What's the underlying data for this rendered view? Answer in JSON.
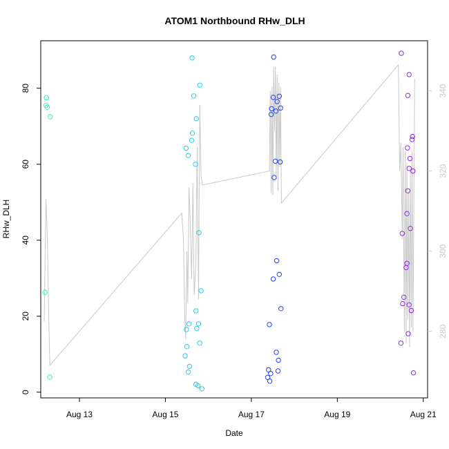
{
  "chart_data": {
    "type": "scatter",
    "title": "ATOM1 Northbound RHw_DLH",
    "xlabel": "Date",
    "ylabel": "RHw_DLH",
    "x_unit": "days",
    "xlim": [
      12.1,
      21.1
    ],
    "ylim": [
      -1.5,
      92.5
    ],
    "x_ticks": [
      13,
      15,
      17,
      19,
      21
    ],
    "x_tick_labels": [
      "Aug 13",
      "Aug 15",
      "Aug 17",
      "Aug 19",
      "Aug 21"
    ],
    "y_ticks": [
      0,
      20,
      40,
      60,
      80
    ],
    "y_tick_labels": [
      "0",
      "20",
      "40",
      "60",
      "80"
    ],
    "right_axis": {
      "color": "#c8c8c8",
      "ylim": [
        263.4,
        352.5
      ],
      "ticks": [
        280,
        300,
        320,
        340
      ],
      "tick_labels": [
        "280",
        "300",
        "320",
        "340"
      ]
    },
    "grid": false,
    "series": [
      {
        "color": "#33f0b2",
        "points": [
          [
            12.23,
            77.5
          ],
          [
            12.22,
            75.5
          ],
          [
            12.25,
            75.0
          ],
          [
            12.32,
            72.5
          ],
          [
            12.2,
            26.3
          ],
          [
            12.31,
            4.0
          ]
        ]
      },
      {
        "color": "#22ccf0",
        "points": [
          [
            15.62,
            88.0
          ],
          [
            15.8,
            80.8
          ],
          [
            15.66,
            78.0
          ],
          [
            15.72,
            72.0
          ],
          [
            15.63,
            68.2
          ],
          [
            15.61,
            66.3
          ],
          [
            15.48,
            64.2
          ],
          [
            15.53,
            62.3
          ],
          [
            15.7,
            60.0
          ],
          [
            15.78,
            42.0
          ],
          [
            15.83,
            26.7
          ],
          [
            15.71,
            21.4
          ],
          [
            15.55,
            18.0
          ],
          [
            15.77,
            18.0
          ],
          [
            15.49,
            16.5
          ],
          [
            15.73,
            16.8
          ],
          [
            15.8,
            12.9
          ],
          [
            15.5,
            12.0
          ],
          [
            15.46,
            9.6
          ],
          [
            15.56,
            6.8
          ],
          [
            15.53,
            5.3
          ],
          [
            15.71,
            2.1
          ],
          [
            15.76,
            1.7
          ],
          [
            15.85,
            0.9
          ]
        ]
      },
      {
        "color": "#2040f0",
        "points": [
          [
            17.52,
            88.2
          ],
          [
            17.51,
            77.6
          ],
          [
            17.65,
            77.9
          ],
          [
            17.6,
            76.5
          ],
          [
            17.47,
            74.6
          ],
          [
            17.57,
            74.0
          ],
          [
            17.68,
            74.8
          ],
          [
            17.46,
            73.1
          ],
          [
            17.56,
            60.8
          ],
          [
            17.67,
            60.6
          ],
          [
            17.53,
            56.5
          ],
          [
            17.59,
            34.6
          ],
          [
            17.65,
            31.0
          ],
          [
            17.51,
            29.8
          ],
          [
            17.69,
            22.0
          ],
          [
            17.42,
            17.8
          ],
          [
            17.58,
            10.5
          ],
          [
            17.63,
            8.4
          ],
          [
            17.4,
            5.9
          ],
          [
            17.62,
            5.6
          ],
          [
            17.45,
            4.9
          ],
          [
            17.38,
            3.9
          ],
          [
            17.43,
            2.9
          ]
        ]
      },
      {
        "color": "#8a2be2",
        "points": [
          [
            20.49,
            89.2
          ],
          [
            20.67,
            83.6
          ],
          [
            20.64,
            78.1
          ],
          [
            20.75,
            67.3
          ],
          [
            20.74,
            66.5
          ],
          [
            20.63,
            64.3
          ],
          [
            20.69,
            61.5
          ],
          [
            20.67,
            58.9
          ],
          [
            20.76,
            58.2
          ],
          [
            20.64,
            53.0
          ],
          [
            20.62,
            47.0
          ],
          [
            20.7,
            43.1
          ],
          [
            20.51,
            41.8
          ],
          [
            20.62,
            33.9
          ],
          [
            20.6,
            32.8
          ],
          [
            20.55,
            25.0
          ],
          [
            20.52,
            23.3
          ],
          [
            20.67,
            23.0
          ],
          [
            20.72,
            21.5
          ],
          [
            20.65,
            15.4
          ],
          [
            20.48,
            12.9
          ],
          [
            20.77,
            5.1
          ]
        ]
      }
    ],
    "overlay_line": {
      "color": "#c8c8c8",
      "axis": "right",
      "points": [
        [
          12.18,
          282.5
        ],
        [
          12.22,
          313.0
        ],
        [
          12.25,
          305.0
        ],
        [
          12.28,
          287.0
        ],
        [
          12.31,
          271.5
        ],
        [
          15.38,
          309.5
        ],
        [
          15.42,
          303.0
        ],
        [
          15.45,
          284.0
        ],
        [
          15.47,
          278.0
        ],
        [
          15.5,
          300.0
        ],
        [
          15.52,
          287.0
        ],
        [
          15.55,
          316.0
        ],
        [
          15.58,
          307.0
        ],
        [
          15.61,
          293.0
        ],
        [
          15.64,
          317.0
        ],
        [
          15.67,
          289.0
        ],
        [
          15.71,
          297.0
        ],
        [
          15.74,
          326.0
        ],
        [
          15.77,
          288.0
        ],
        [
          15.8,
          336.5
        ],
        [
          15.83,
          318.5
        ],
        [
          15.86,
          316.5
        ],
        [
          17.42,
          320.0
        ],
        [
          17.44,
          340.0
        ],
        [
          17.46,
          314.5
        ],
        [
          17.48,
          341.0
        ],
        [
          17.5,
          314.0
        ],
        [
          17.52,
          346.0
        ],
        [
          17.54,
          330.0
        ],
        [
          17.56,
          346.0
        ],
        [
          17.58,
          318.0
        ],
        [
          17.6,
          344.0
        ],
        [
          17.62,
          315.0
        ],
        [
          17.64,
          342.0
        ],
        [
          17.66,
          321.0
        ],
        [
          17.68,
          341.0
        ],
        [
          17.7,
          312.0
        ],
        [
          20.42,
          346.5
        ],
        [
          20.45,
          320.0
        ],
        [
          20.48,
          327.0
        ],
        [
          20.51,
          303.0
        ],
        [
          20.53,
          326.0
        ],
        [
          20.56,
          280.0
        ],
        [
          20.58,
          325.0
        ],
        [
          20.6,
          277.0
        ],
        [
          20.62,
          322.0
        ],
        [
          20.64,
          283.0
        ],
        [
          20.66,
          315.0
        ],
        [
          20.68,
          276.0
        ],
        [
          20.7,
          320.0
        ],
        [
          20.72,
          281.0
        ],
        [
          20.74,
          325.0
        ],
        [
          20.76,
          280.0
        ],
        [
          20.78,
          310.0
        ],
        [
          20.8,
          343.0
        ]
      ]
    }
  }
}
